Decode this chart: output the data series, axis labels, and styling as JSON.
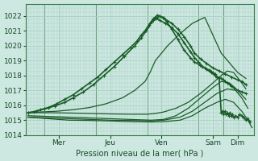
{
  "bg_color": "#cde8e0",
  "grid_color": "#a8cfc4",
  "line_color": "#1a5c28",
  "ylabel": "Pression niveau de la mer( hPa )",
  "ylim": [
    1014.0,
    1022.8
  ],
  "yticks": [
    1014,
    1015,
    1016,
    1017,
    1018,
    1019,
    1020,
    1021,
    1022
  ],
  "x_day_labels": [
    "Mer",
    "Jeu",
    "Ven",
    "Sam",
    "Dim"
  ],
  "x_day_positions": [
    0.75,
    2.0,
    3.25,
    4.5,
    5.1
  ],
  "xlim": [
    -0.05,
    5.5
  ],
  "series": [
    {
      "x": [
        0.0,
        0.15,
        0.3,
        0.5,
        0.7,
        0.9,
        1.1,
        1.3,
        1.5,
        1.7,
        1.9,
        2.1,
        2.3,
        2.5,
        2.65,
        2.75,
        2.85,
        2.92,
        3.0,
        3.05,
        3.1,
        3.2,
        3.35,
        3.5,
        3.65,
        3.8,
        3.95,
        4.05,
        4.15,
        4.25,
        4.35,
        4.45,
        4.55,
        4.6,
        4.65,
        4.7,
        4.75,
        4.8,
        4.85,
        4.9,
        4.95,
        5.0,
        5.1,
        5.2,
        5.3
      ],
      "y": [
        1015.5,
        1015.55,
        1015.7,
        1015.85,
        1016.1,
        1016.4,
        1016.7,
        1017.1,
        1017.5,
        1017.9,
        1018.4,
        1018.9,
        1019.4,
        1019.9,
        1020.3,
        1020.7,
        1021.0,
        1021.3,
        1021.6,
        1021.75,
        1021.85,
        1021.7,
        1021.5,
        1021.2,
        1020.8,
        1020.2,
        1019.6,
        1019.2,
        1018.9,
        1018.6,
        1018.4,
        1018.2,
        1018.0,
        1017.9,
        1017.85,
        1017.8,
        1017.7,
        1017.6,
        1017.5,
        1017.4,
        1017.3,
        1017.2,
        1017.0,
        1016.9,
        1016.8
      ],
      "marker": true,
      "lw": 1.2
    },
    {
      "x": [
        0.0,
        0.2,
        0.4,
        0.65,
        0.9,
        1.1,
        1.35,
        1.6,
        1.85,
        2.1,
        2.35,
        2.6,
        2.75,
        2.88,
        2.97,
        3.05,
        3.15,
        3.3,
        3.5,
        3.65,
        3.8,
        3.95,
        4.05,
        4.2,
        4.35,
        4.5,
        4.65,
        4.8,
        4.95,
        5.1,
        5.2,
        5.3
      ],
      "y": [
        1015.5,
        1015.6,
        1015.75,
        1015.95,
        1016.2,
        1016.5,
        1016.9,
        1017.4,
        1018.0,
        1018.6,
        1019.3,
        1020.0,
        1020.5,
        1021.0,
        1021.5,
        1021.8,
        1022.05,
        1021.85,
        1021.5,
        1021.1,
        1020.6,
        1020.0,
        1019.5,
        1019.1,
        1018.8,
        1018.5,
        1018.3,
        1018.1,
        1017.9,
        1017.7,
        1017.6,
        1017.4
      ],
      "marker": true,
      "lw": 1.2
    },
    {
      "x": [
        0.0,
        0.3,
        0.7,
        1.1,
        1.5,
        1.9,
        2.3,
        2.6,
        2.85,
        2.97,
        3.1,
        3.4,
        3.7,
        4.0,
        4.3,
        4.7,
        5.1,
        5.3
      ],
      "y": [
        1015.5,
        1015.55,
        1015.6,
        1015.7,
        1015.85,
        1016.1,
        1016.5,
        1017.0,
        1017.6,
        1018.2,
        1019.0,
        1020.0,
        1020.8,
        1021.5,
        1021.9,
        1019.5,
        1018.2,
        1017.8
      ],
      "marker": false,
      "lw": 0.9
    },
    {
      "x": [
        0.0,
        0.5,
        1.0,
        1.5,
        2.0,
        2.5,
        2.9,
        3.1,
        3.3,
        3.6,
        3.9,
        4.2,
        4.5,
        4.7,
        4.85,
        5.0,
        5.2,
        5.3
      ],
      "y": [
        1015.5,
        1015.5,
        1015.48,
        1015.45,
        1015.42,
        1015.4,
        1015.4,
        1015.45,
        1015.55,
        1015.8,
        1016.2,
        1016.8,
        1017.5,
        1018.0,
        1018.3,
        1018.2,
        1017.5,
        1017.1
      ],
      "marker": false,
      "lw": 0.9
    },
    {
      "x": [
        0.0,
        0.5,
        1.0,
        1.5,
        2.0,
        2.5,
        3.0,
        3.3,
        3.6,
        3.9,
        4.2,
        4.5,
        4.7,
        4.9,
        5.1,
        5.3
      ],
      "y": [
        1015.3,
        1015.25,
        1015.2,
        1015.15,
        1015.1,
        1015.05,
        1015.0,
        1015.05,
        1015.3,
        1015.8,
        1016.5,
        1017.2,
        1017.6,
        1017.5,
        1017.0,
        1016.4
      ],
      "marker": false,
      "lw": 0.9
    },
    {
      "x": [
        0.0,
        0.5,
        1.0,
        1.5,
        2.0,
        2.5,
        3.0,
        3.3,
        3.7,
        4.0,
        4.3,
        4.6,
        4.85,
        5.05,
        5.2,
        5.35
      ],
      "y": [
        1015.2,
        1015.15,
        1015.1,
        1015.05,
        1015.0,
        1014.98,
        1014.95,
        1015.0,
        1015.2,
        1015.6,
        1016.2,
        1016.8,
        1017.1,
        1017.0,
        1016.5,
        1015.8
      ],
      "marker": false,
      "lw": 0.9
    },
    {
      "x": [
        0.0,
        0.5,
        1.0,
        1.5,
        2.0,
        2.5,
        3.0,
        3.3,
        3.7,
        4.0,
        4.3,
        4.6,
        4.8,
        5.0,
        5.2,
        5.35,
        5.45
      ],
      "y": [
        1015.2,
        1015.1,
        1015.0,
        1014.98,
        1014.95,
        1014.9,
        1014.88,
        1014.9,
        1015.0,
        1015.3,
        1015.8,
        1016.2,
        1016.4,
        1016.2,
        1015.6,
        1015.0,
        1014.5
      ],
      "marker": false,
      "lw": 0.9
    },
    {
      "x": [
        2.95,
        3.0,
        3.05,
        3.1,
        3.15,
        3.2,
        3.28,
        3.38,
        3.5,
        3.65,
        3.8,
        3.95,
        4.05,
        4.18,
        4.3,
        4.42,
        4.5,
        4.55,
        4.6,
        4.65,
        4.7,
        4.73,
        4.76,
        4.79,
        4.82,
        4.85,
        4.88,
        4.91,
        4.94,
        4.97,
        5.0,
        5.05,
        5.1,
        5.15,
        5.2,
        5.25,
        5.3,
        5.35,
        5.4
      ],
      "y": [
        1021.4,
        1021.6,
        1021.7,
        1021.8,
        1021.9,
        1022.0,
        1021.9,
        1021.6,
        1021.1,
        1020.4,
        1019.7,
        1019.2,
        1018.9,
        1018.7,
        1018.5,
        1018.35,
        1018.2,
        1018.1,
        1017.9,
        1017.8,
        1015.5,
        1015.6,
        1015.4,
        1015.6,
        1015.4,
        1015.5,
        1015.3,
        1015.5,
        1015.3,
        1015.4,
        1015.2,
        1015.3,
        1015.2,
        1015.4,
        1015.3,
        1015.2,
        1015.0,
        1015.1,
        1014.9
      ],
      "marker": true,
      "lw": 1.2
    }
  ]
}
